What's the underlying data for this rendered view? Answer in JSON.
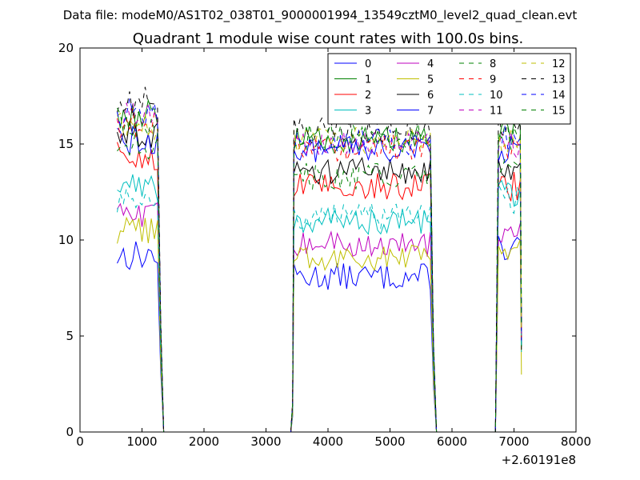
{
  "suptitle": "Data file: modeM0/AS1T02_038T01_9000001994_13549cztM0_level2_quad_clean.evt",
  "chart_data": {
    "type": "line",
    "title": "Quadrant 1 module wise count rates with 100.0s bins.",
    "xlabel": "",
    "ylabel": "",
    "x_offset_label": "+2.60191e8",
    "xlim": [
      0,
      8000
    ],
    "ylim": [
      0,
      20
    ],
    "xticks": [
      0,
      1000,
      2000,
      3000,
      4000,
      5000,
      6000,
      7000,
      8000
    ],
    "yticks": [
      0,
      5,
      10,
      15,
      20
    ],
    "grid": false,
    "legend_placement": "top-right",
    "legend_columns": 4,
    "segments": [
      {
        "x0": 600,
        "x1": 1250
      },
      {
        "x0": 3450,
        "x1": 5650
      },
      {
        "x0": 6750,
        "x1": 7100
      }
    ],
    "series": [
      {
        "name": "0",
        "color": "#0000ff",
        "dash": "solid",
        "levels": [
          9.2,
          8.1,
          9.6
        ]
      },
      {
        "name": "1",
        "color": "#008000",
        "dash": "solid",
        "levels": [
          16.5,
          15.2,
          15.6
        ]
      },
      {
        "name": "2",
        "color": "#ff0000",
        "dash": "solid",
        "levels": [
          14.3,
          12.8,
          12.8
        ]
      },
      {
        "name": "3",
        "color": "#00bfbf",
        "dash": "solid",
        "levels": [
          12.8,
          11.0,
          12.4
        ]
      },
      {
        "name": "4",
        "color": "#bf00bf",
        "dash": "solid",
        "levels": [
          11.2,
          9.8,
          10.6
        ]
      },
      {
        "name": "5",
        "color": "#bfbf00",
        "dash": "solid",
        "levels": [
          10.4,
          9.1,
          9.8
        ]
      },
      {
        "name": "6",
        "color": "#000000",
        "dash": "solid",
        "levels": [
          15.6,
          13.6,
          13.8
        ]
      },
      {
        "name": "7",
        "color": "#0000ff",
        "dash": "solid",
        "levels": [
          15.2,
          14.7,
          14.8
        ]
      },
      {
        "name": "8",
        "color": "#008000",
        "dash": "dashed",
        "levels": [
          15.0,
          13.3,
          13.6
        ]
      },
      {
        "name": "9",
        "color": "#ff0000",
        "dash": "dashed",
        "levels": [
          16.1,
          14.8,
          14.6
        ]
      },
      {
        "name": "10",
        "color": "#00bfbf",
        "dash": "dashed",
        "levels": [
          12.2,
          11.3,
          12.1
        ]
      },
      {
        "name": "11",
        "color": "#bf00bf",
        "dash": "dashed",
        "levels": [
          16.4,
          15.0,
          15.0
        ]
      },
      {
        "name": "12",
        "color": "#bfbf00",
        "dash": "dashed",
        "levels": [
          16.0,
          15.2,
          15.4
        ]
      },
      {
        "name": "13",
        "color": "#000000",
        "dash": "dashed",
        "levels": [
          17.2,
          15.7,
          16.1
        ]
      },
      {
        "name": "14",
        "color": "#0000ff",
        "dash": "dashed",
        "levels": [
          16.6,
          15.1,
          15.3
        ]
      },
      {
        "name": "15",
        "color": "#008000",
        "dash": "dashed",
        "levels": [
          16.2,
          15.4,
          15.5
        ]
      }
    ]
  }
}
